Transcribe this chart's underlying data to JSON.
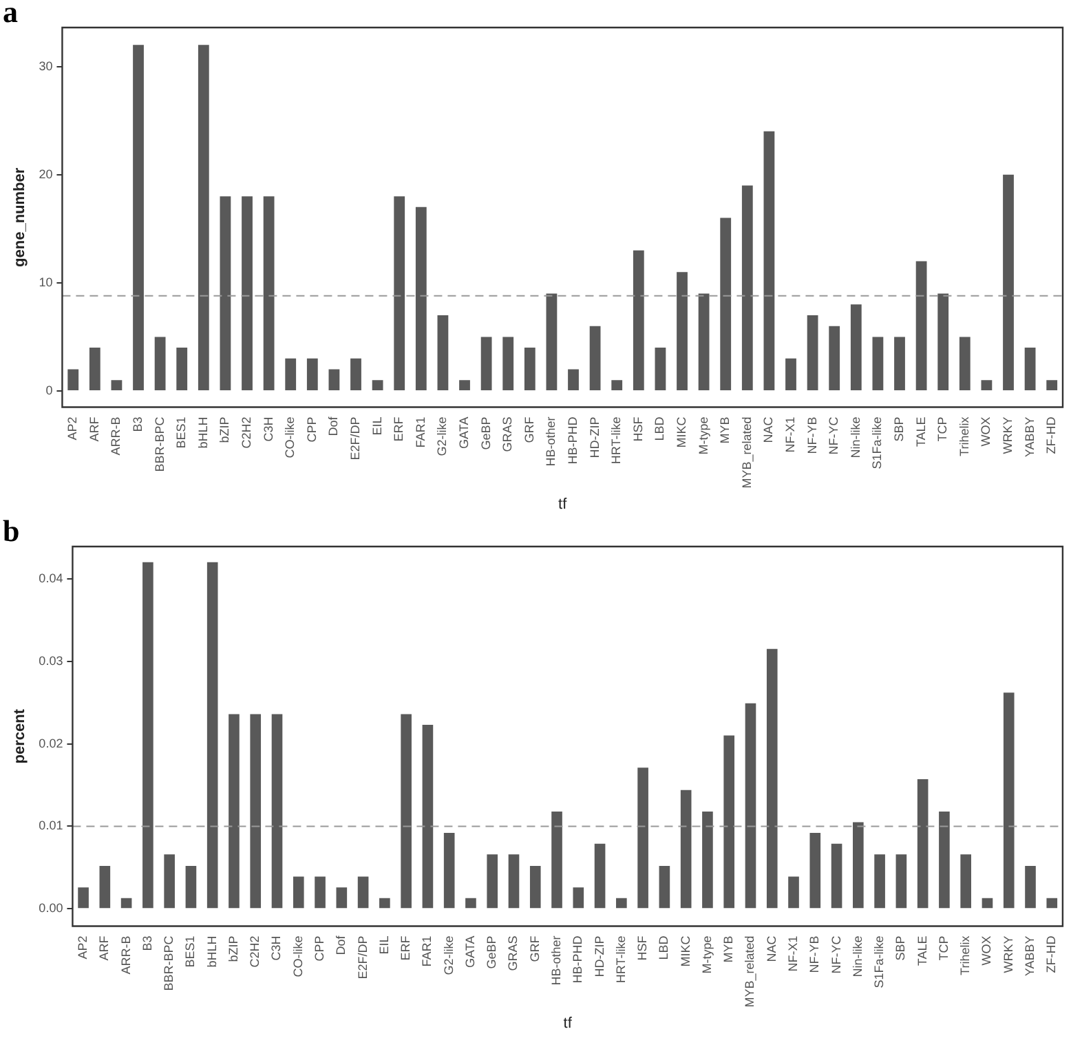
{
  "chart_data": [
    {
      "type": "bar",
      "title": "a",
      "xlabel": "tf",
      "ylabel": "gene_number",
      "categories": [
        "AP2",
        "ARF",
        "ARR-B",
        "B3",
        "BBR-BPC",
        "BES1",
        "bHLH",
        "bZIP",
        "C2H2",
        "C3H",
        "CO-like",
        "CPP",
        "Dof",
        "E2F/DP",
        "EIL",
        "ERF",
        "FAR1",
        "G2-like",
        "GATA",
        "GeBP",
        "GRAS",
        "GRF",
        "HB-other",
        "HB-PHD",
        "HD-ZIP",
        "HRT-like",
        "HSF",
        "LBD",
        "MIKC",
        "M-type",
        "MYB",
        "MYB_related",
        "NAC",
        "NF-X1",
        "NF-YB",
        "NF-YC",
        "Nin-like",
        "S1Fa-like",
        "SBP",
        "TALE",
        "TCP",
        "Trihelix",
        "WOX",
        "WRKY",
        "YABBY",
        "ZF-HD"
      ],
      "values": [
        2,
        4,
        1,
        32,
        5,
        4,
        32,
        18,
        18,
        18,
        3,
        3,
        2,
        3,
        1,
        18,
        17,
        7,
        1,
        5,
        5,
        4,
        9,
        2,
        6,
        1,
        13,
        4,
        11,
        9,
        16,
        19,
        24,
        3,
        7,
        6,
        8,
        5,
        5,
        12,
        9,
        5,
        1,
        20,
        4,
        1
      ],
      "color": "#595959",
      "ylim": [
        -1.5,
        33.6
      ],
      "yticks": [
        0,
        10,
        20,
        30
      ],
      "grid": false,
      "legend": false,
      "ref_lines": [
        {
          "axis": "y",
          "value": 8.8,
          "color": "#999999",
          "line_style": "dashed"
        }
      ]
    },
    {
      "type": "bar",
      "title": "b",
      "xlabel": "tf",
      "ylabel": "percent",
      "categories": [
        "AP2",
        "ARF",
        "ARR-B",
        "B3",
        "BBR-BPC",
        "BES1",
        "bHLH",
        "bZIP",
        "C2H2",
        "C3H",
        "CO-like",
        "CPP",
        "Dof",
        "E2F/DP",
        "EIL",
        "ERF",
        "FAR1",
        "G2-like",
        "GATA",
        "GeBP",
        "GRAS",
        "GRF",
        "HB-other",
        "HB-PHD",
        "HD-ZIP",
        "HRT-like",
        "HSF",
        "LBD",
        "MIKC",
        "M-type",
        "MYB",
        "MYB_related",
        "NAC",
        "NF-X1",
        "NF-YB",
        "NF-YC",
        "Nin-like",
        "S1Fa-like",
        "SBP",
        "TALE",
        "TCP",
        "Trihelix",
        "WOX",
        "WRKY",
        "YABBY",
        "ZF-HD"
      ],
      "values": [
        0.0026,
        0.0052,
        0.0013,
        0.042,
        0.0066,
        0.0052,
        0.042,
        0.0236,
        0.0236,
        0.0236,
        0.0039,
        0.0039,
        0.0026,
        0.0039,
        0.0013,
        0.0236,
        0.0223,
        0.0092,
        0.0013,
        0.0066,
        0.0066,
        0.0052,
        0.0118,
        0.0026,
        0.0079,
        0.0013,
        0.0171,
        0.0052,
        0.0144,
        0.0118,
        0.021,
        0.0249,
        0.0315,
        0.0039,
        0.0092,
        0.0079,
        0.0105,
        0.0066,
        0.0066,
        0.0157,
        0.0118,
        0.0066,
        0.0013,
        0.0262,
        0.0052,
        0.0013
      ],
      "color": "#595959",
      "ylim": [
        -0.0021,
        0.0439
      ],
      "yticks": [
        {
          "value": 0,
          "label": "0.00"
        },
        {
          "value": 0.01,
          "label": "0.01"
        },
        {
          "value": 0.02,
          "label": "0.02"
        },
        {
          "value": 0.03,
          "label": "0.03"
        },
        {
          "value": 0.04,
          "label": "0.04"
        }
      ],
      "grid": false,
      "legend": false,
      "ref_lines": [
        {
          "axis": "y",
          "value": 0.01,
          "color": "#999999",
          "line_style": "dashed"
        }
      ]
    }
  ]
}
